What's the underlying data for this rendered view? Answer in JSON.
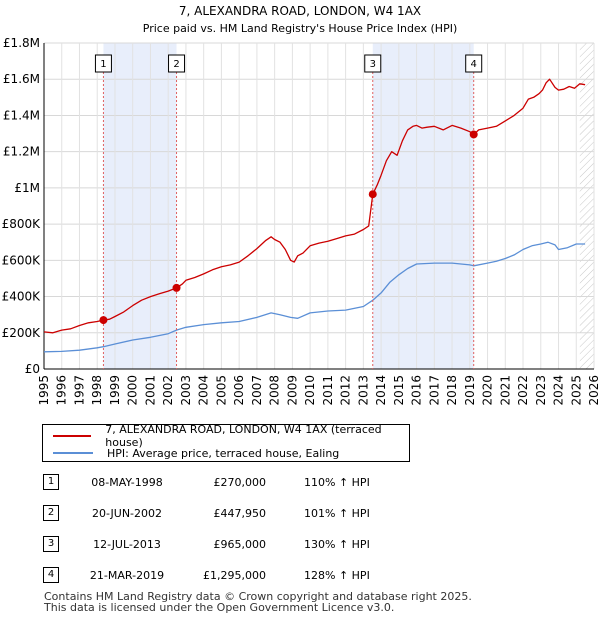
{
  "chart_data": {
    "type": "line",
    "title": "7, ALEXANDRA ROAD, LONDON, W4 1AX",
    "subtitle": "Price paid vs. HM Land Registry's House Price Index (HPI)",
    "xlim": [
      1995,
      2026
    ],
    "ylim": [
      0,
      1800000
    ],
    "x_ticks": [
      "1995",
      "1996",
      "1997",
      "1998",
      "1999",
      "2000",
      "2001",
      "2002",
      "2003",
      "2004",
      "2005",
      "2006",
      "2007",
      "2008",
      "2009",
      "2010",
      "2011",
      "2012",
      "2013",
      "2014",
      "2015",
      "2016",
      "2017",
      "2018",
      "2019",
      "2020",
      "2021",
      "2022",
      "2023",
      "2024",
      "2025",
      "2026"
    ],
    "y_ticks": [
      {
        "value": 0,
        "label": "£0"
      },
      {
        "value": 200000,
        "label": "£200K"
      },
      {
        "value": 400000,
        "label": "£400K"
      },
      {
        "value": 600000,
        "label": "£600K"
      },
      {
        "value": 800000,
        "label": "£800K"
      },
      {
        "value": 1000000,
        "label": "£1M"
      },
      {
        "value": 1200000,
        "label": "£1.2M"
      },
      {
        "value": 1400000,
        "label": "£1.4M"
      },
      {
        "value": 1600000,
        "label": "£1.6M"
      },
      {
        "value": 1800000,
        "label": "£1.8M"
      }
    ],
    "shaded_ranges": [
      [
        1998.35,
        2002.47
      ],
      [
        2013.53,
        2019.22
      ]
    ],
    "future_start": 2025.2,
    "series": [
      {
        "name": "7, ALEXANDRA ROAD, LONDON, W4 1AX (terraced house)",
        "color": "#cc0000",
        "x": [
          1995.0,
          1995.5,
          1996.0,
          1996.5,
          1997.0,
          1997.5,
          1998.0,
          1998.35,
          1998.7,
          1999.0,
          1999.5,
          2000.0,
          2000.5,
          2001.0,
          2001.5,
          2002.0,
          2002.47,
          2002.8,
          2003.0,
          2003.5,
          2004.0,
          2004.5,
          2005.0,
          2005.5,
          2006.0,
          2006.5,
          2007.0,
          2007.5,
          2007.8,
          2008.0,
          2008.3,
          2008.6,
          2008.9,
          2009.1,
          2009.3,
          2009.6,
          2010.0,
          2010.5,
          2011.0,
          2011.5,
          2012.0,
          2012.5,
          2013.0,
          2013.3,
          2013.53,
          2013.8,
          2014.0,
          2014.3,
          2014.6,
          2014.9,
          2015.2,
          2015.5,
          2015.8,
          2016.0,
          2016.3,
          2016.6,
          2017.0,
          2017.5,
          2018.0,
          2018.5,
          2019.0,
          2019.22,
          2019.5,
          2020.0,
          2020.5,
          2021.0,
          2021.5,
          2022.0,
          2022.3,
          2022.6,
          2022.9,
          2023.1,
          2023.3,
          2023.5,
          2023.8,
          2024.0,
          2024.3,
          2024.6,
          2024.9,
          2025.2,
          2025.5
        ],
        "y": [
          205000,
          200000,
          215000,
          222000,
          240000,
          255000,
          262000,
          270000,
          275000,
          290000,
          315000,
          350000,
          380000,
          400000,
          415000,
          430000,
          447950,
          470000,
          490000,
          505000,
          525000,
          548000,
          565000,
          575000,
          590000,
          625000,
          665000,
          710000,
          730000,
          715000,
          700000,
          660000,
          600000,
          590000,
          625000,
          640000,
          680000,
          695000,
          705000,
          720000,
          735000,
          745000,
          770000,
          790000,
          965000,
          1020000,
          1070000,
          1150000,
          1200000,
          1180000,
          1260000,
          1320000,
          1340000,
          1345000,
          1330000,
          1335000,
          1340000,
          1320000,
          1345000,
          1330000,
          1310000,
          1295000,
          1320000,
          1330000,
          1340000,
          1370000,
          1400000,
          1440000,
          1490000,
          1500000,
          1520000,
          1540000,
          1580000,
          1600000,
          1555000,
          1540000,
          1545000,
          1560000,
          1550000,
          1575000,
          1570000
        ]
      },
      {
        "name": "HPI: Average price, terraced house, Ealing",
        "color": "#5b8fd6",
        "x": [
          1995.0,
          1996.0,
          1997.0,
          1998.0,
          1998.35,
          1999.0,
          2000.0,
          2001.0,
          2002.0,
          2002.47,
          2003.0,
          2004.0,
          2005.0,
          2006.0,
          2007.0,
          2007.8,
          2008.3,
          2008.9,
          2009.3,
          2010.0,
          2011.0,
          2012.0,
          2013.0,
          2013.53,
          2014.0,
          2014.5,
          2015.0,
          2015.5,
          2016.0,
          2017.0,
          2018.0,
          2019.0,
          2019.22,
          2020.0,
          2020.5,
          2021.0,
          2021.5,
          2022.0,
          2022.5,
          2023.0,
          2023.4,
          2023.8,
          2024.0,
          2024.5,
          2025.0,
          2025.5
        ],
        "y": [
          95000,
          97000,
          104000,
          117000,
          123000,
          138000,
          160000,
          175000,
          195000,
          215000,
          230000,
          245000,
          255000,
          262000,
          285000,
          310000,
          300000,
          285000,
          280000,
          310000,
          320000,
          325000,
          345000,
          380000,
          420000,
          480000,
          520000,
          555000,
          580000,
          585000,
          585000,
          575000,
          570000,
          585000,
          595000,
          610000,
          630000,
          660000,
          680000,
          690000,
          700000,
          685000,
          660000,
          670000,
          690000,
          690000
        ]
      }
    ],
    "sales": [
      {
        "label": "1",
        "x": 1998.35,
        "y": 270000
      },
      {
        "label": "2",
        "x": 2002.47,
        "y": 447950
      },
      {
        "label": "3",
        "x": 2013.53,
        "y": 965000
      },
      {
        "label": "4",
        "x": 2019.22,
        "y": 1295000
      }
    ]
  },
  "legend": {
    "property_label": "7, ALEXANDRA ROAD, LONDON, W4 1AX (terraced house)",
    "hpi_label": "HPI: Average price, terraced house, Ealing"
  },
  "transactions": [
    {
      "num": "1",
      "date": "08-MAY-1998",
      "price": "£270,000",
      "hpi": "110% ↑ HPI"
    },
    {
      "num": "2",
      "date": "20-JUN-2002",
      "price": "£447,950",
      "hpi": "101% ↑ HPI"
    },
    {
      "num": "3",
      "date": "12-JUL-2013",
      "price": "£965,000",
      "hpi": "130% ↑ HPI"
    },
    {
      "num": "4",
      "date": "21-MAR-2019",
      "price": "£1,295,000",
      "hpi": "128% ↑ HPI"
    }
  ],
  "footer": {
    "line1": "Contains HM Land Registry data © Crown copyright and database right 2025.",
    "line2": "This data is licensed under the Open Government Licence v3.0."
  }
}
